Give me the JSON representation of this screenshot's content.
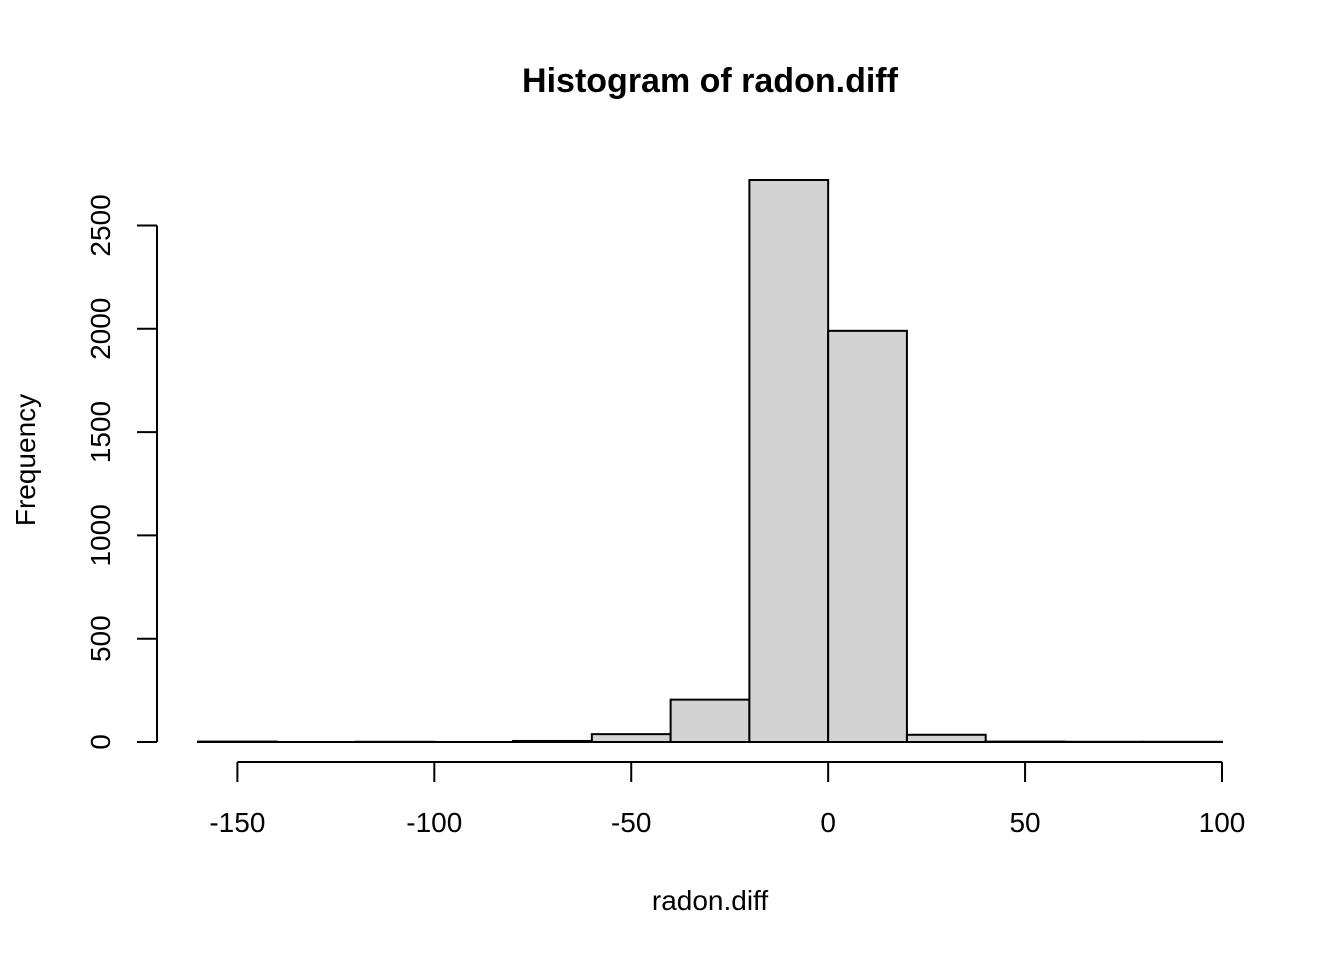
{
  "chart_data": {
    "type": "bar",
    "title": "Histogram of radon.diff",
    "xlabel": "radon.diff",
    "ylabel": "Frequency",
    "bins": [
      {
        "x0": -160,
        "x1": -140,
        "count": 2
      },
      {
        "x0": -140,
        "x1": -120,
        "count": 0
      },
      {
        "x0": -120,
        "x1": -100,
        "count": 1
      },
      {
        "x0": -100,
        "x1": -80,
        "count": 0
      },
      {
        "x0": -80,
        "x1": -60,
        "count": 5
      },
      {
        "x0": -60,
        "x1": -40,
        "count": 38
      },
      {
        "x0": -40,
        "x1": -20,
        "count": 205
      },
      {
        "x0": -20,
        "x1": 0,
        "count": 2720
      },
      {
        "x0": 0,
        "x1": 20,
        "count": 1990
      },
      {
        "x0": 20,
        "x1": 40,
        "count": 35
      },
      {
        "x0": 40,
        "x1": 60,
        "count": 2
      },
      {
        "x0": 60,
        "x1": 80,
        "count": 1
      },
      {
        "x0": 80,
        "x1": 100,
        "count": 1
      }
    ],
    "x_ticks": [
      -150,
      -100,
      -50,
      0,
      50,
      100
    ],
    "x_tick_labels": [
      "-150",
      "-100",
      "-50",
      "0",
      "50",
      "100"
    ],
    "y_ticks": [
      0,
      500,
      1000,
      1500,
      2000,
      2500
    ],
    "y_tick_labels": [
      "0",
      "500",
      "1000",
      "1500",
      "2000",
      "2500"
    ],
    "xlim": [
      -160,
      100
    ],
    "ylim": [
      0,
      2720
    ],
    "bar_color": "#d3d3d3",
    "grid": false
  }
}
